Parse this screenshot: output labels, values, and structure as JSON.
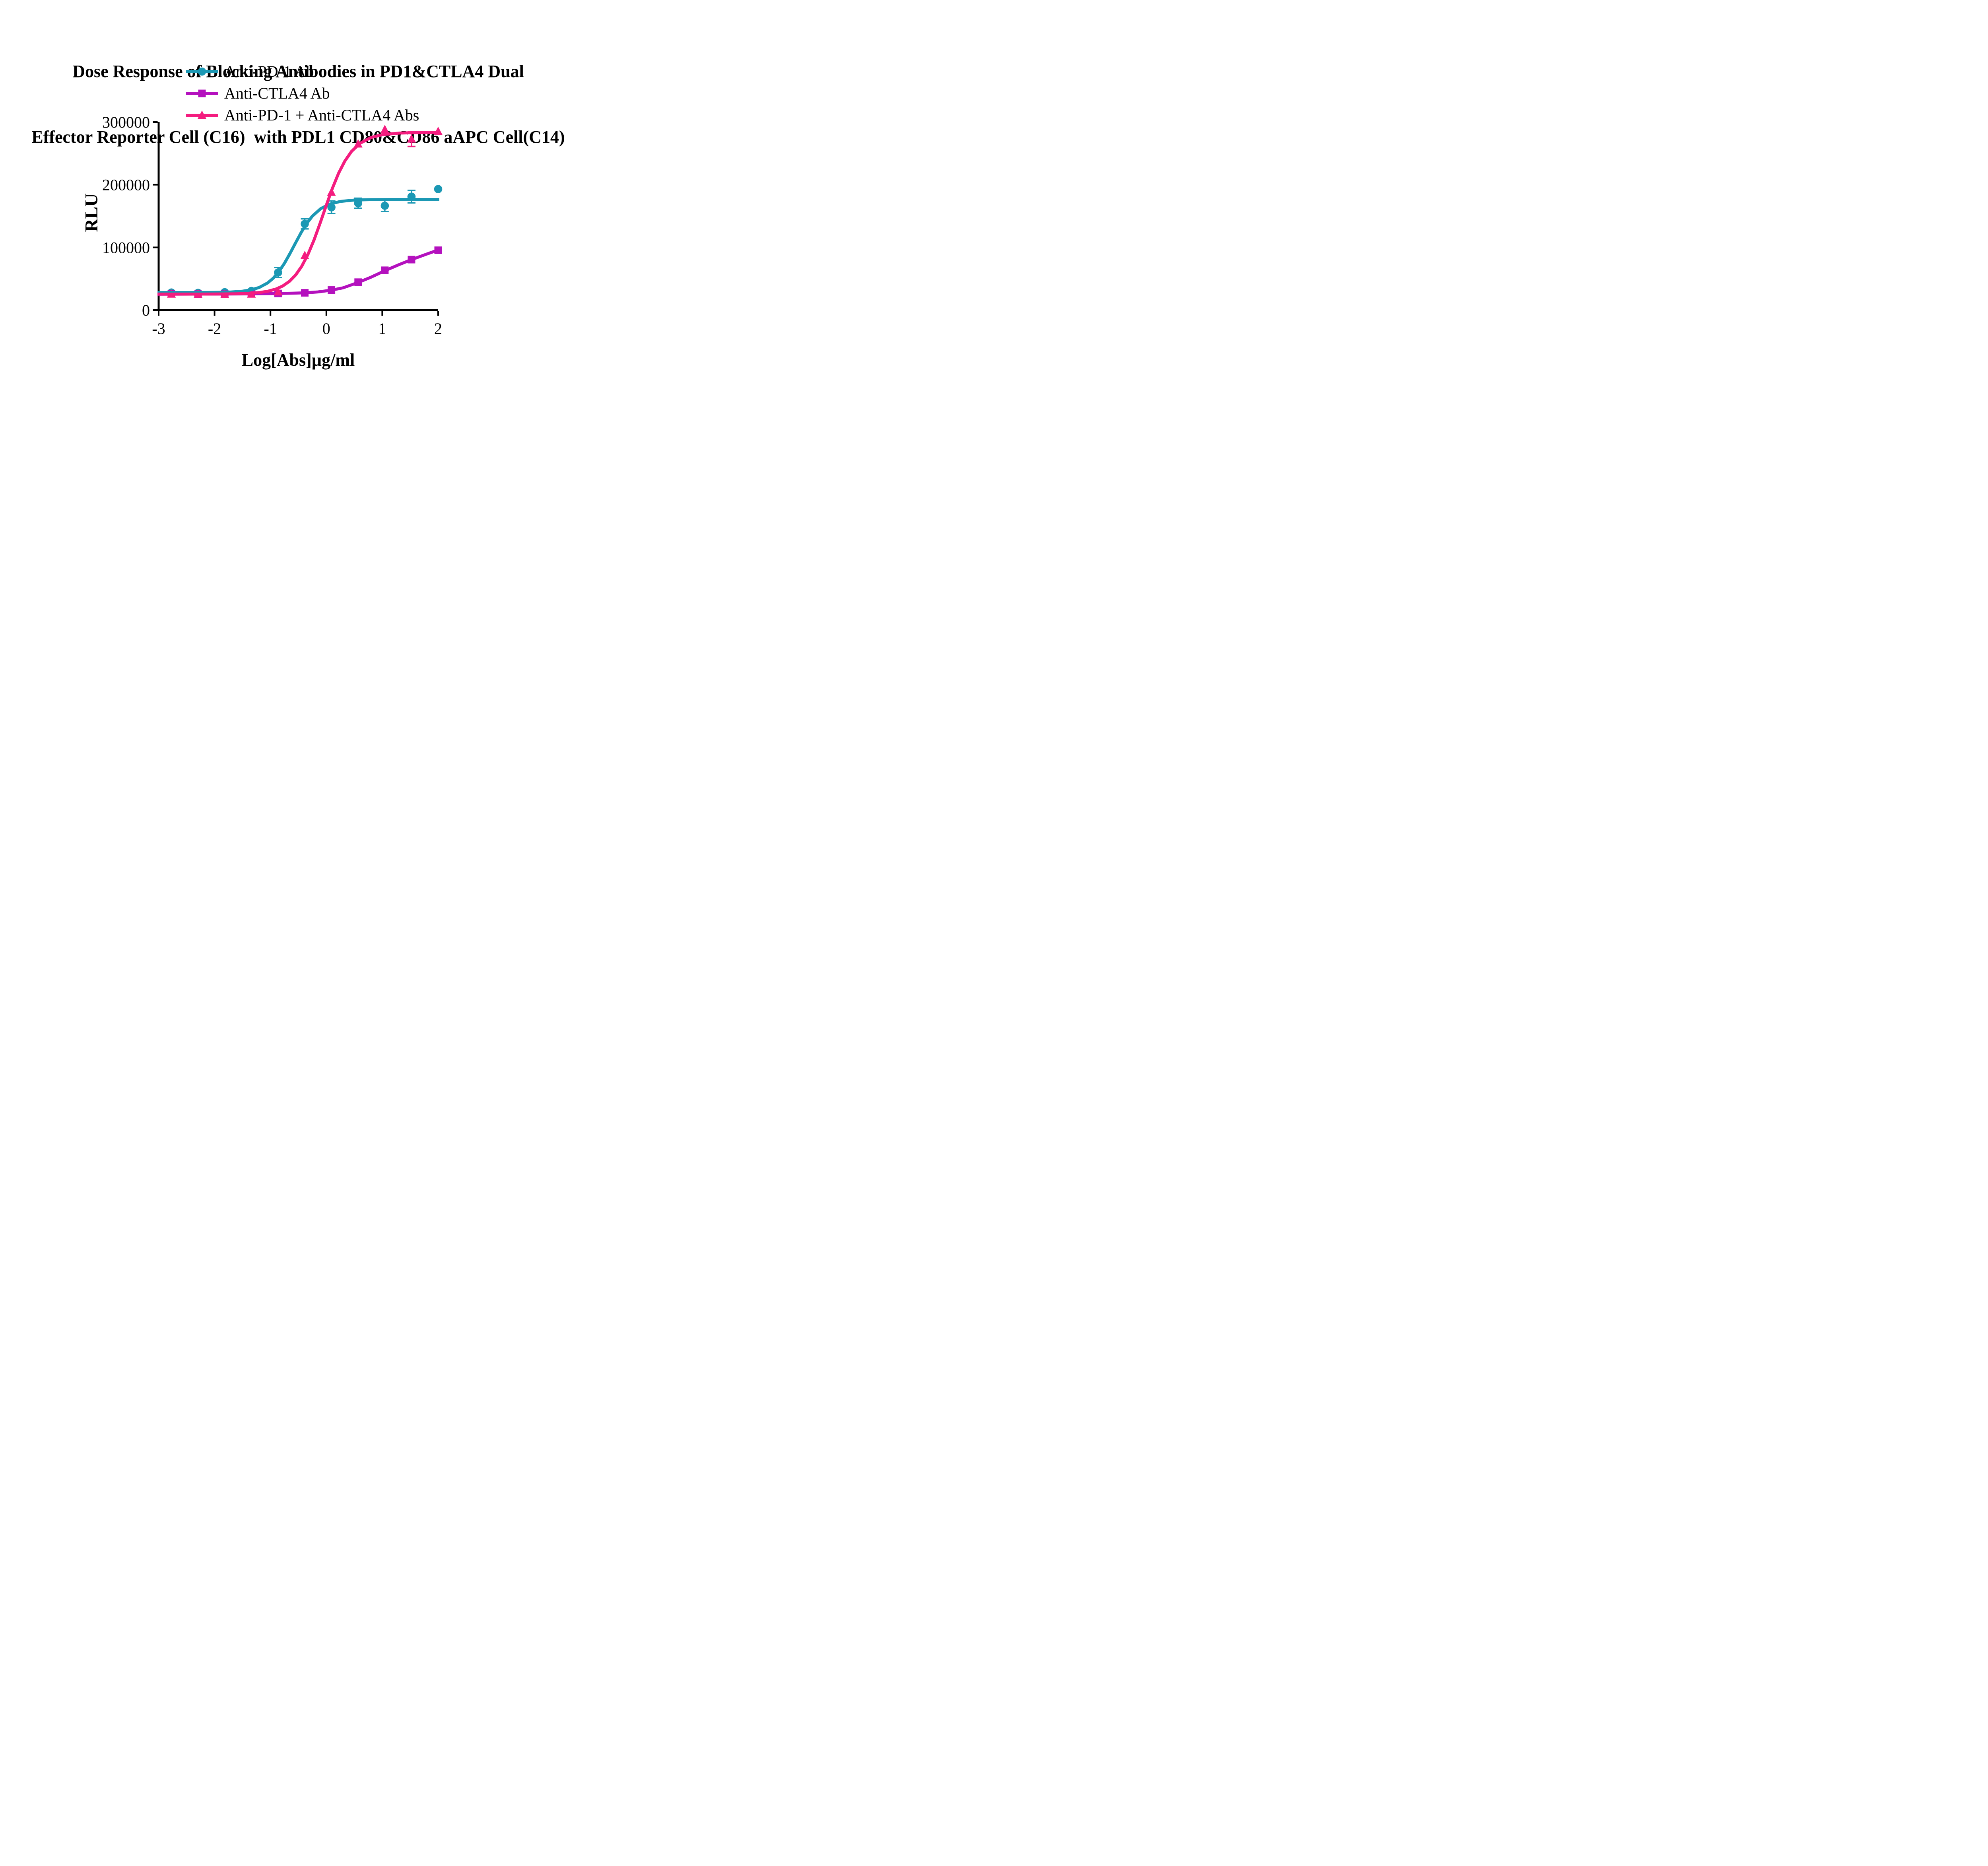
{
  "title": {
    "line1": "Dose Response of Blocking Antibodies in PD1&CTLA4 Dual",
    "line2": "Effector Reporter Cell (C16)  with PDL1 CD80&CD86 aAPC Cell(C14)"
  },
  "legend": [
    {
      "label": "Anti-PD-1 Ab",
      "color": "#1B98B4",
      "marker": "circle"
    },
    {
      "label": "Anti-CTLA4 Ab",
      "color": "#B411BE",
      "marker": "square"
    },
    {
      "label": "Anti-PD-1 + Anti-CTLA4 Abs",
      "color": "#F41C7F",
      "marker": "triangle"
    }
  ],
  "axes": {
    "x_title": "Log[Abs]µg/ml",
    "y_title": "RLU"
  },
  "chart_data": {
    "type": "line",
    "title": "Dose Response of Blocking Antibodies in PD1&CTLA4 Dual Effector Reporter Cell (C16) with PDL1 CD80&CD86 aAPC Cell(C14)",
    "xlabel": "Log[Abs]µg/ml",
    "ylabel": "RLU",
    "xlim": [
      -3,
      2
    ],
    "ylim": [
      0,
      300000
    ],
    "grid": false,
    "legend_position": "top-left-above-plot",
    "x_ticks": [
      {
        "v": -3,
        "label": "-3"
      },
      {
        "v": -2,
        "label": "-2"
      },
      {
        "v": -1,
        "label": "-1"
      },
      {
        "v": 0,
        "label": "0"
      },
      {
        "v": 1,
        "label": "1"
      },
      {
        "v": 2,
        "label": "2"
      }
    ],
    "y_ticks": [
      {
        "v": 0,
        "label": "0"
      },
      {
        "v": 100000,
        "label": "100000"
      },
      {
        "v": 200000,
        "label": "200000"
      },
      {
        "v": 300000,
        "label": "300000"
      }
    ],
    "x": [
      -2.772,
      -2.295,
      -1.818,
      -1.341,
      -0.863,
      -0.386,
      0.091,
      0.569,
      1.046,
      1.523,
      2.0
    ],
    "series": [
      {
        "name": "Anti-PD-1 Ab",
        "slug": "anti-pd-1-ab",
        "color": "#1B98B4",
        "marker": "circle",
        "values": [
          28000,
          27500,
          28500,
          30500,
          60000,
          137500,
          164000,
          170500,
          166500,
          181000,
          193000
        ],
        "errors": [
          0,
          0,
          0,
          0,
          8000,
          8000,
          10000,
          8000,
          9000,
          10000,
          0
        ],
        "fit": {
          "model": "4PL",
          "bottom": 28000,
          "top": 176500,
          "logEC50": -0.58,
          "hill": 2.0
        },
        "curve": [
          [
            -3.02,
            28000
          ],
          [
            -2.7,
            28020
          ],
          [
            -2.4,
            28060
          ],
          [
            -2.1,
            28160
          ],
          [
            -1.9,
            28340
          ],
          [
            -1.7,
            28850
          ],
          [
            -1.5,
            30100
          ],
          [
            -1.35,
            32160
          ],
          [
            -1.2,
            36080
          ],
          [
            -1.05,
            43300
          ],
          [
            -0.95,
            50850
          ],
          [
            -0.85,
            61240
          ],
          [
            -0.75,
            74580
          ],
          [
            -0.65,
            90390
          ],
          [
            -0.55,
            107370
          ],
          [
            -0.45,
            123810
          ],
          [
            -0.35,
            138270
          ],
          [
            -0.25,
            149880
          ],
          [
            -0.1,
            161830
          ],
          [
            0.05,
            168760
          ],
          [
            0.25,
            173320
          ],
          [
            0.5,
            175480
          ],
          [
            0.8,
            176280
          ],
          [
            1.2,
            176460
          ],
          [
            1.6,
            176490
          ],
          [
            2.02,
            176500
          ]
        ]
      },
      {
        "name": "Anti-CTLA4 Ab",
        "slug": "anti-ctla4-ab",
        "color": "#B411BE",
        "marker": "square",
        "values": [
          26000,
          25500,
          25500,
          26000,
          26500,
          27500,
          32000,
          44500,
          63500,
          80500,
          95500
        ],
        "errors": [
          0,
          0,
          0,
          0,
          0,
          0,
          0,
          0,
          0,
          0,
          0
        ],
        "fit": {
          "model": "4PL-partial",
          "bottom": 25300,
          "top_not_reached": true
        },
        "curve": [
          [
            -3.02,
            25300
          ],
          [
            -2.772,
            25400
          ],
          [
            -2.5,
            25450
          ],
          [
            -2.295,
            25500
          ],
          [
            -2.0,
            25550
          ],
          [
            -1.818,
            25600
          ],
          [
            -1.5,
            25750
          ],
          [
            -1.341,
            25850
          ],
          [
            -1.0,
            26250
          ],
          [
            -0.863,
            26450
          ],
          [
            -0.6,
            26950
          ],
          [
            -0.386,
            27550
          ],
          [
            -0.15,
            28900
          ],
          [
            0.091,
            31800
          ],
          [
            0.3,
            35500
          ],
          [
            0.569,
            44000
          ],
          [
            0.8,
            52500
          ],
          [
            1.046,
            62800
          ],
          [
            1.3,
            72500
          ],
          [
            1.523,
            80500
          ],
          [
            1.8,
            89500
          ],
          [
            2.02,
            96500
          ]
        ]
      },
      {
        "name": "Anti-PD-1 + Anti-CTLA4 Abs",
        "slug": "anti-pd-1-anti-ctla4-abs",
        "color": "#F41C7F",
        "marker": "triangle",
        "values": [
          25500,
          25500,
          25000,
          25500,
          29000,
          87000,
          188000,
          265000,
          288000,
          273000,
          285000
        ],
        "errors": [
          0,
          0,
          0,
          0,
          0,
          0,
          0,
          0,
          0,
          12000,
          0
        ],
        "fit": {
          "model": "4PL",
          "bottom": 25500,
          "top": 283500,
          "logEC50": -0.05,
          "hill": 1.75
        },
        "curve": [
          [
            -3.02,
            25500
          ],
          [
            -2.6,
            25520
          ],
          [
            -2.2,
            25560
          ],
          [
            -1.9,
            25680
          ],
          [
            -1.6,
            25990
          ],
          [
            -1.4,
            26610
          ],
          [
            -1.2,
            27980
          ],
          [
            -1.05,
            30010
          ],
          [
            -0.9,
            33640
          ],
          [
            -0.78,
            38430
          ],
          [
            -0.66,
            45850
          ],
          [
            -0.55,
            55860
          ],
          [
            -0.44,
            69870
          ],
          [
            -0.33,
            88580
          ],
          [
            -0.22,
            111960
          ],
          [
            -0.11,
            138950
          ],
          [
            0,
            167450
          ],
          [
            0.11,
            194700
          ],
          [
            0.22,
            218500
          ],
          [
            0.33,
            237620
          ],
          [
            0.45,
            253140
          ],
          [
            0.6,
            265970
          ],
          [
            0.8,
            275380
          ],
          [
            1,
            279800
          ],
          [
            1.3,
            282380
          ],
          [
            1.7,
            283240
          ],
          [
            2.02,
            283420
          ]
        ]
      }
    ],
    "layout": {
      "plot_left": 399,
      "plot_right": 1102,
      "plot_top": 307,
      "plot_bottom": 780,
      "axis_width": 5,
      "tick_width": 4,
      "tick_len": 12,
      "curve_width": 7.5,
      "errbar_width": 3.4,
      "cap_half": 10,
      "marker": {
        "circle_r": 10.3,
        "square_size": 19,
        "tri_w": 11,
        "tri_up": 12,
        "tri_down": 9
      },
      "tick_font": 40,
      "axis_color": "#000000",
      "paint_order": [
        [
          0,
          "points"
        ],
        [
          1,
          "curve"
        ],
        [
          1,
          "points"
        ],
        [
          2,
          "points"
        ],
        [
          0,
          "curve"
        ],
        [
          2,
          "curve"
        ]
      ]
    }
  }
}
